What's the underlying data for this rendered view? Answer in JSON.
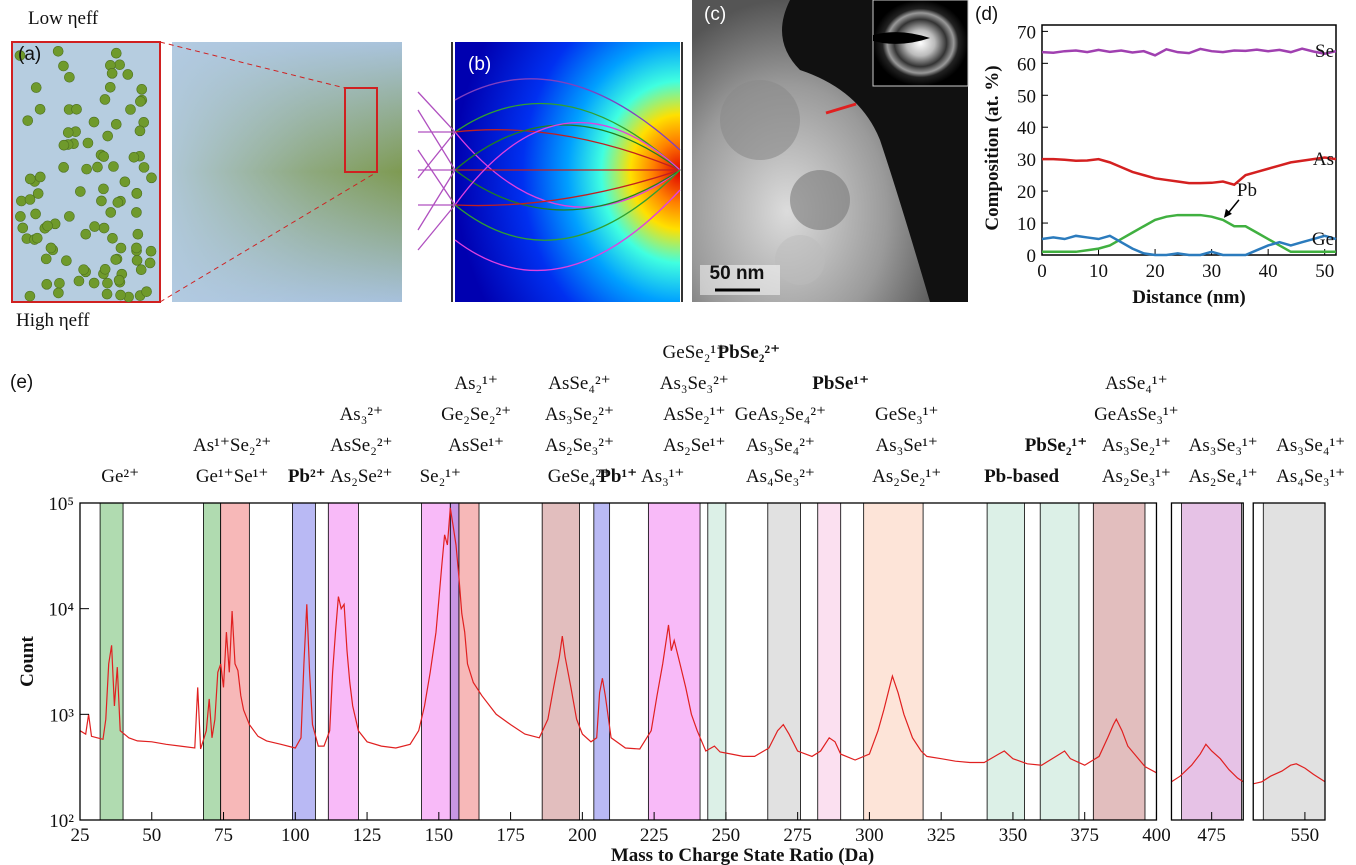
{
  "panels": {
    "a": {
      "label": "(a)",
      "top": "Low ηeff",
      "bottom": "High ηeff"
    },
    "b": {
      "label": "(b)"
    },
    "c": {
      "label": "(c)",
      "scale_bar": "50 nm"
    }
  },
  "chart_data": [
    {
      "type": "line",
      "label": "(d)",
      "xlabel": "Distance (nm)",
      "ylabel": "Composition (at. %)",
      "x": [
        0,
        2,
        4,
        6,
        8,
        10,
        12,
        14,
        16,
        18,
        20,
        22,
        24,
        26,
        28,
        30,
        32,
        34,
        36,
        38,
        40,
        42,
        44,
        46,
        48,
        50,
        52
      ],
      "xlim": [
        0,
        52
      ],
      "xticks": [
        0,
        10,
        20,
        30,
        40,
        50
      ],
      "ylim": [
        0,
        72
      ],
      "yticks": [
        0,
        10,
        20,
        30,
        40,
        50,
        60,
        70
      ],
      "series": [
        {
          "name": "Se",
          "color": "#a040b0",
          "values": [
            63.5,
            63.3,
            63.8,
            64,
            63.5,
            64.2,
            63.6,
            64,
            63.4,
            63.8,
            62.5,
            64.4,
            63.5,
            63.2,
            64.5,
            63.8,
            63.5,
            64,
            63.9,
            64.3,
            63.8,
            64.2,
            63.5,
            64.6,
            63.7,
            63,
            63.8
          ]
        },
        {
          "name": "As",
          "color": "#d42020",
          "values": [
            30,
            30,
            29.8,
            29.5,
            29.6,
            30,
            29,
            27.5,
            26,
            25,
            24,
            23.5,
            23,
            22.5,
            22.5,
            22.6,
            23,
            22,
            25,
            26,
            27,
            28,
            29,
            29.5,
            30,
            30.5,
            30
          ]
        },
        {
          "name": "Pb",
          "color": "#40b040",
          "values": [
            1,
            1,
            1,
            1,
            1.5,
            2,
            3,
            5,
            7,
            9,
            11,
            12,
            12.5,
            12.5,
            12.5,
            12,
            11,
            9,
            9,
            7,
            5,
            3,
            1,
            1,
            1,
            1,
            1
          ]
        },
        {
          "name": "Ge",
          "color": "#2b7bbd",
          "values": [
            5,
            5.5,
            5,
            6,
            5.5,
            5,
            6,
            4,
            2,
            0.5,
            0,
            0,
            0.5,
            0,
            0,
            1,
            0,
            0,
            0,
            1.5,
            3,
            4,
            3,
            4,
            5,
            6,
            5
          ]
        }
      ]
    },
    {
      "type": "spectrum",
      "label": "(e)",
      "xlabel": "Mass to Charge State Ratio (Da)",
      "ylabel": "Count",
      "log": true,
      "segments": [
        {
          "xlim": [
            25,
            400
          ],
          "xticks": [
            25,
            50,
            75,
            100,
            125,
            150,
            175,
            200,
            225,
            250,
            275,
            300,
            325,
            350,
            375,
            400
          ]
        },
        {
          "xlim": [
            461,
            486
          ],
          "xticks": [
            475
          ]
        },
        {
          "xlim": [
            532,
            557
          ],
          "xticks": [
            550
          ]
        }
      ],
      "ylim": [
        100,
        100000
      ],
      "yticks": [
        {
          "value": 100,
          "label": "10²"
        },
        {
          "value": 1000,
          "label": "10³"
        },
        {
          "value": 10000,
          "label": "10⁴"
        },
        {
          "value": 100000,
          "label": "10⁵"
        }
      ],
      "x": [
        25,
        27,
        28,
        29,
        31,
        33,
        34,
        35,
        36,
        37,
        38,
        39,
        42,
        45,
        50,
        55,
        60,
        65,
        66,
        67,
        69,
        70,
        71,
        72,
        73,
        74,
        75,
        76,
        77,
        78,
        79,
        80,
        81,
        82,
        84,
        87,
        90,
        95,
        100,
        102,
        103,
        104,
        105,
        106,
        108,
        110,
        112,
        113,
        114,
        115,
        116,
        117,
        118,
        119,
        120,
        122,
        125,
        130,
        135,
        140,
        143,
        145,
        147,
        149,
        150,
        151,
        152,
        153,
        154,
        155,
        156,
        157,
        158,
        159,
        160,
        162,
        165,
        170,
        175,
        180,
        185,
        188,
        190,
        192,
        193,
        194,
        196,
        198,
        200,
        203,
        205,
        206,
        207,
        208,
        210,
        215,
        220,
        224,
        226,
        228,
        230,
        231,
        232,
        234,
        236,
        238,
        240,
        243,
        246,
        248,
        252,
        256,
        260,
        265,
        268,
        270,
        272,
        275,
        280,
        283,
        286,
        288,
        290,
        295,
        300,
        303,
        305,
        307,
        308,
        310,
        312,
        315,
        318,
        320,
        325,
        330,
        335,
        340,
        345,
        347,
        350,
        355,
        360,
        365,
        368,
        370,
        375,
        380,
        383,
        385,
        386,
        388,
        390,
        393,
        396,
        400,
        461,
        464,
        468,
        471,
        473,
        475,
        478,
        481,
        484,
        486,
        532,
        535,
        538,
        542,
        545,
        547,
        550,
        553,
        557
      ],
      "series": [
        {
          "color": "#e02020",
          "values": [
            700,
            650,
            1000,
            620,
            600,
            580,
            900,
            3000,
            4500,
            1200,
            2800,
            700,
            600,
            560,
            550,
            520,
            500,
            480,
            1800,
            470,
            700,
            1400,
            600,
            900,
            2500,
            3000,
            1800,
            6000,
            2500,
            9500,
            3000,
            2600,
            1500,
            1100,
            800,
            620,
            560,
            520,
            480,
            600,
            3000,
            11000,
            2500,
            800,
            500,
            500,
            700,
            2500,
            6000,
            13000,
            10000,
            11000,
            4000,
            2000,
            1200,
            700,
            550,
            500,
            480,
            520,
            700,
            1200,
            2500,
            6000,
            12000,
            25000,
            50000,
            40000,
            90000,
            60000,
            40000,
            20000,
            9000,
            6000,
            3000,
            2000,
            1500,
            1000,
            800,
            650,
            600,
            900,
            1800,
            3500,
            5500,
            3500,
            1800,
            900,
            650,
            550,
            600,
            1600,
            2200,
            1500,
            600,
            480,
            470,
            700,
            1500,
            3000,
            7000,
            4000,
            5000,
            3000,
            1800,
            1000,
            700,
            450,
            500,
            440,
            420,
            400,
            400,
            480,
            700,
            800,
            650,
            450,
            400,
            450,
            600,
            550,
            420,
            370,
            420,
            700,
            1100,
            1800,
            2300,
            1600,
            1000,
            600,
            450,
            400,
            380,
            360,
            350,
            350,
            420,
            450,
            380,
            340,
            330,
            400,
            450,
            380,
            330,
            400,
            600,
            800,
            900,
            700,
            500,
            400,
            320,
            280,
            230,
            260,
            330,
            420,
            520,
            450,
            380,
            300,
            250,
            230,
            220,
            230,
            260,
            290,
            330,
            340,
            310,
            270,
            230
          ]
        }
      ],
      "bands": [
        {
          "range": [
            32,
            40
          ],
          "color": "#8fcc8f"
        },
        {
          "range": [
            68,
            74
          ],
          "color": "#8fcc8f"
        },
        {
          "range": [
            74,
            84
          ],
          "color": "#f49a9a"
        },
        {
          "range": [
            99,
            107
          ],
          "color": "#9b9bef"
        },
        {
          "range": [
            111.5,
            122
          ],
          "color": "#f59df5"
        },
        {
          "range": [
            144,
            154
          ],
          "color": "#f59df5"
        },
        {
          "range": [
            154,
            157
          ],
          "color": "#b06ad8"
        },
        {
          "range": [
            157,
            164
          ],
          "color": "#f49a9a"
        },
        {
          "range": [
            186,
            199
          ],
          "color": "#d6a3a3"
        },
        {
          "range": [
            204,
            209.5
          ],
          "color": "#9b9bef"
        },
        {
          "range": [
            223,
            241
          ],
          "color": "#f59df5"
        },
        {
          "range": [
            243.7,
            250
          ],
          "color": "#cde9dd"
        },
        {
          "range": [
            264.6,
            276
          ],
          "color": "#d4d4d4"
        },
        {
          "range": [
            282,
            290
          ],
          "color": "#f9d3ea"
        },
        {
          "range": [
            298,
            318.7
          ],
          "color": "#fcd9c8"
        },
        {
          "range": [
            341,
            354
          ],
          "color": "#cde9dd"
        },
        {
          "range": [
            359.5,
            373
          ],
          "color": "#cde9dd"
        },
        {
          "range": [
            378,
            396
          ],
          "color": "#d6a3a3"
        },
        {
          "range": [
            464.5,
            485.4
          ],
          "color": "#dca8dc"
        },
        {
          "range": [
            535.5,
            557
          ],
          "color": "#d4d4d4"
        }
      ],
      "annotations": [
        {
          "x": 39,
          "lines": [
            "Ge²⁺"
          ]
        },
        {
          "x": 78,
          "lines": [
            "As¹⁺Se₂²⁺",
            "Ge¹⁺Se¹⁺"
          ]
        },
        {
          "x": 104,
          "lines": [
            "Pb²⁺"
          ],
          "bold": true
        },
        {
          "x": 123,
          "lines": [
            "As₃²⁺",
            "AsSe₂²⁺",
            "As₂Se²⁺"
          ]
        },
        {
          "x": 150.5,
          "lines": [
            "Se₂¹⁺"
          ]
        },
        {
          "x": 163,
          "lines": [
            "As₂¹⁺",
            "Ge₂Se₂²⁺",
            "AsSe¹⁺",
            null
          ]
        },
        {
          "x": 199,
          "lines": [
            "AsSe₄²⁺",
            "As₃Se₂²⁺",
            "As₂Se₃²⁺",
            "GeSe₄²⁺"
          ]
        },
        {
          "x": 212.5,
          "lines": [
            "Pb¹⁺"
          ],
          "bold": true
        },
        {
          "x": 228,
          "lines": [
            "As₃¹⁺"
          ]
        },
        {
          "x": 239,
          "lines": [
            "GeSe₂¹⁺",
            "As₃Se₃²⁺",
            "AsSe₂¹⁺",
            "As₂Se¹⁺",
            null
          ]
        },
        {
          "x": 258,
          "lines": [
            "PbSe₂²⁺",
            null,
            null,
            null,
            null
          ],
          "bold": true
        },
        {
          "x": 269,
          "lines": [
            "GeAs₂Se₄²⁺",
            "As₃Se₄²⁺",
            "As₄Se₃²⁺"
          ]
        },
        {
          "x": 290,
          "lines": [
            "PbSe¹⁺",
            null,
            null,
            null
          ],
          "bold": true
        },
        {
          "x": 313,
          "lines": [
            "GeSe₃¹⁺",
            "As₃Se¹⁺",
            "As₂Se₂¹⁺"
          ]
        },
        {
          "x": 353,
          "lines": [
            "Pb-based"
          ],
          "bold": true
        },
        {
          "x": 365,
          "lines": [
            "PbSe₂¹⁺",
            null
          ],
          "bold": true
        },
        {
          "x": 393,
          "lines": [
            "AsSe₄¹⁺",
            "GeAsSe₃¹⁺",
            "As₃Se₂¹⁺",
            "As₂Se₃¹⁺"
          ]
        },
        {
          "x": 479,
          "lines": [
            "As₃Se₃¹⁺",
            "As₂Se₄¹⁺"
          ]
        },
        {
          "x": 552,
          "lines": [
            "As₃Se₄¹⁺",
            "As₄Se₃¹⁺"
          ]
        }
      ]
    }
  ]
}
